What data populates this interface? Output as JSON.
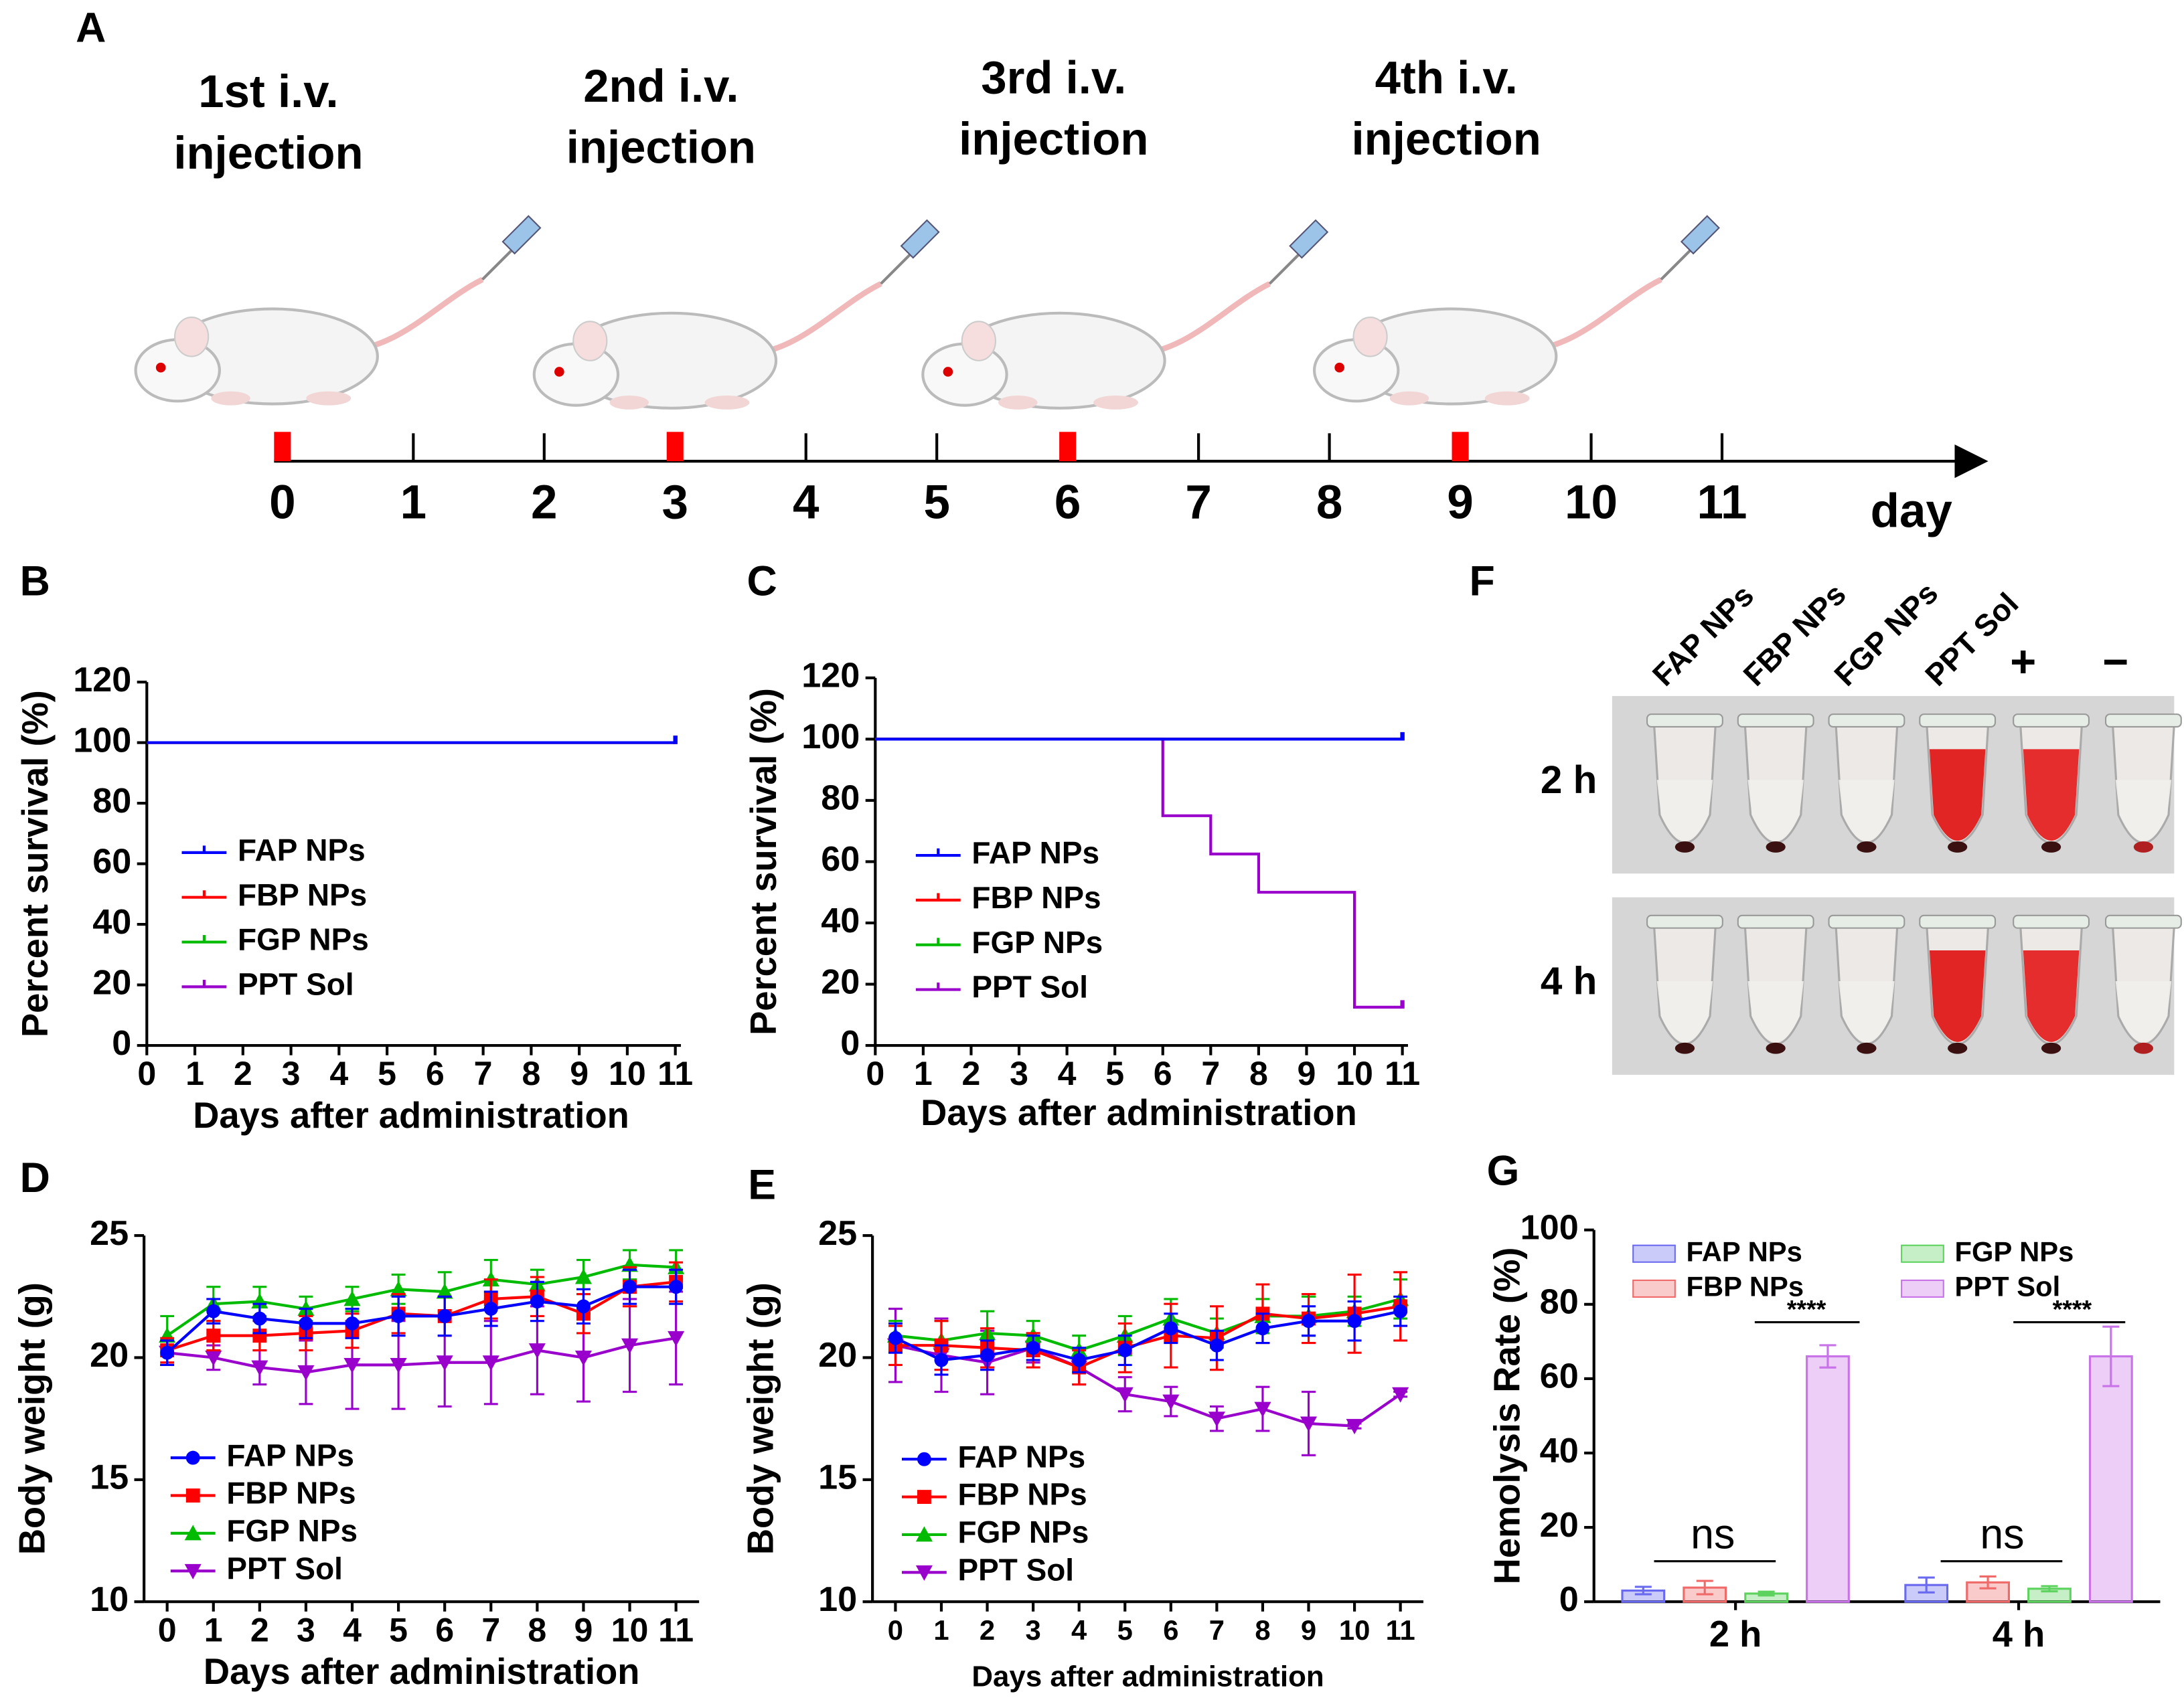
{
  "timeline": {
    "panel": "A",
    "injections": [
      [
        "1st i.v.",
        "injection"
      ],
      [
        "2nd i.v.",
        "injection"
      ],
      [
        "3rd i.v.",
        "injection"
      ],
      [
        "4th i.v.",
        "injection"
      ]
    ],
    "injection_days": [
      0,
      3,
      6,
      9
    ],
    "days": [
      0,
      1,
      2,
      3,
      4,
      5,
      6,
      7,
      8,
      9,
      10,
      11
    ],
    "unit": "day",
    "marker_color": "#ff0000"
  },
  "photo": {
    "panel": "F",
    "columns": [
      "FAP NPs",
      "FBP NPs",
      "FGP NPs",
      "PPT Sol",
      "+",
      "−"
    ],
    "rows": [
      "2 h",
      "4 h"
    ]
  },
  "chart_data": [
    {
      "panel": "B",
      "type": "step",
      "xlabel": "Days after administration",
      "ylabel": "Percent survival (%)",
      "x": [
        0,
        1,
        2,
        3,
        4,
        5,
        6,
        7,
        8,
        9,
        10,
        11
      ],
      "xlim": [
        0,
        11
      ],
      "xticks": [
        0,
        1,
        2,
        3,
        4,
        5,
        6,
        7,
        8,
        9,
        10,
        11
      ],
      "ylim": [
        0,
        120
      ],
      "yticks": [
        0,
        20,
        40,
        60,
        80,
        100,
        120
      ],
      "legend": "center left",
      "series": [
        {
          "name": "FAP NPs",
          "color": "#0000ff",
          "values": [
            100,
            100,
            100,
            100,
            100,
            100,
            100,
            100,
            100,
            100,
            100,
            100
          ]
        },
        {
          "name": "FBP NPs",
          "color": "#ff0000",
          "values": [
            100,
            100,
            100,
            100,
            100,
            100,
            100,
            100,
            100,
            100,
            100,
            100
          ]
        },
        {
          "name": "FGP NPs",
          "color": "#00bb00",
          "values": [
            100,
            100,
            100,
            100,
            100,
            100,
            100,
            100,
            100,
            100,
            100,
            100
          ]
        },
        {
          "name": "PPT Sol",
          "color": "#9900cc",
          "values": [
            100,
            100,
            100,
            100,
            100,
            100,
            100,
            100,
            100,
            100,
            100,
            100
          ]
        }
      ]
    },
    {
      "panel": "C",
      "type": "step",
      "xlabel": "Days after administration",
      "ylabel": "Percent survival (%)",
      "x": [
        0,
        1,
        2,
        3,
        4,
        5,
        6,
        7,
        8,
        9,
        10,
        11
      ],
      "xlim": [
        0,
        11
      ],
      "xticks": [
        0,
        1,
        2,
        3,
        4,
        5,
        6,
        7,
        8,
        9,
        10,
        11
      ],
      "ylim": [
        0,
        120
      ],
      "yticks": [
        0,
        20,
        40,
        60,
        80,
        100,
        120
      ],
      "legend": "center left",
      "series": [
        {
          "name": "FAP NPs",
          "color": "#0000ff",
          "values": [
            100,
            100,
            100,
            100,
            100,
            100,
            100,
            100,
            100,
            100,
            100,
            100
          ]
        },
        {
          "name": "FBP NPs",
          "color": "#ff0000",
          "values": [
            100,
            100,
            100,
            100,
            100,
            100,
            100,
            100,
            100,
            100,
            100,
            100
          ]
        },
        {
          "name": "FGP NPs",
          "color": "#00bb00",
          "values": [
            100,
            100,
            100,
            100,
            100,
            100,
            100,
            100,
            100,
            100,
            100,
            100
          ]
        },
        {
          "name": "PPT Sol",
          "color": "#9900cc",
          "values": [
            100,
            100,
            100,
            100,
            100,
            100,
            75,
            62.5,
            50,
            50,
            12.5,
            12.5
          ]
        }
      ]
    },
    {
      "panel": "D",
      "type": "line",
      "xlabel": "Days after administration",
      "ylabel": "Body weight (g)",
      "x": [
        0,
        1,
        2,
        3,
        4,
        5,
        6,
        7,
        8,
        9,
        10,
        11
      ],
      "xlim": [
        -0.5,
        11.5
      ],
      "xticks": [
        0,
        1,
        2,
        3,
        4,
        5,
        6,
        7,
        8,
        9,
        10,
        11
      ],
      "ylim": [
        10,
        25
      ],
      "yticks": [
        10,
        15,
        20,
        25
      ],
      "legend": "lower left",
      "series": [
        {
          "name": "FAP NPs",
          "color": "#0000ff",
          "marker": "circle",
          "values": [
            20.2,
            21.9,
            21.6,
            21.4,
            21.4,
            21.7,
            21.7,
            22.0,
            22.3,
            22.1,
            22.9,
            22.9
          ],
          "errors": [
            0.5,
            0.5,
            0.6,
            0.6,
            0.6,
            0.8,
            0.8,
            0.7,
            0.8,
            0.7,
            0.7,
            0.7
          ]
        },
        {
          "name": "FBP NPs",
          "color": "#ff0000",
          "marker": "square",
          "values": [
            20.3,
            20.9,
            20.9,
            21.0,
            21.1,
            21.8,
            21.7,
            22.4,
            22.5,
            21.8,
            22.9,
            23.1
          ],
          "errors": [
            0.5,
            0.6,
            0.6,
            0.7,
            0.7,
            0.8,
            0.8,
            0.8,
            0.8,
            0.8,
            0.8,
            0.8
          ]
        },
        {
          "name": "FGP NPs",
          "color": "#00bb00",
          "marker": "triangle",
          "values": [
            20.9,
            22.2,
            22.3,
            22.0,
            22.4,
            22.8,
            22.7,
            23.2,
            23.0,
            23.3,
            23.8,
            23.7
          ],
          "errors": [
            0.8,
            0.7,
            0.6,
            0.5,
            0.5,
            0.6,
            0.8,
            0.8,
            0.6,
            0.7,
            0.6,
            0.7
          ]
        },
        {
          "name": "PPT Sol",
          "color": "#9900cc",
          "marker": "triangle-down",
          "values": [
            20.2,
            20.0,
            19.6,
            19.4,
            19.7,
            19.7,
            19.8,
            19.8,
            20.3,
            20.0,
            20.5,
            20.8
          ],
          "errors": [
            0.5,
            0.5,
            0.7,
            1.3,
            1.8,
            1.8,
            1.8,
            1.7,
            1.8,
            1.8,
            1.9,
            1.9
          ]
        }
      ]
    },
    {
      "panel": "E",
      "type": "line",
      "xlabel": "Days after administration",
      "ylabel": "Body weight (g)",
      "x": [
        0,
        1,
        2,
        3,
        4,
        5,
        6,
        7,
        8,
        9,
        10,
        11
      ],
      "xlim": [
        -0.5,
        11.5
      ],
      "xticks": [
        0,
        1,
        2,
        3,
        4,
        5,
        6,
        7,
        8,
        9,
        10,
        11
      ],
      "ylim": [
        10,
        25
      ],
      "yticks": [
        10,
        15,
        20,
        25
      ],
      "legend": "lower left",
      "series": [
        {
          "name": "FAP NPs",
          "color": "#0000ff",
          "marker": "circle",
          "values": [
            20.8,
            19.9,
            20.1,
            20.4,
            19.9,
            20.3,
            21.2,
            20.5,
            21.2,
            21.5,
            21.5,
            21.9
          ],
          "errors": [
            0.6,
            0.6,
            0.6,
            0.5,
            0.5,
            0.6,
            0.6,
            0.6,
            0.6,
            0.6,
            0.8,
            0.6
          ]
        },
        {
          "name": "FBP NPs",
          "color": "#ff0000",
          "marker": "square",
          "values": [
            20.5,
            20.5,
            20.4,
            20.3,
            19.6,
            20.4,
            20.9,
            20.8,
            21.8,
            21.6,
            21.8,
            22.1
          ],
          "errors": [
            0.8,
            1.0,
            0.8,
            0.7,
            0.7,
            1.0,
            1.3,
            1.3,
            1.2,
            1.0,
            1.6,
            1.4
          ]
        },
        {
          "name": "FGP NPs",
          "color": "#00bb00",
          "marker": "triangle",
          "values": [
            20.9,
            20.7,
            21.0,
            20.9,
            20.3,
            20.9,
            21.6,
            21.0,
            21.7,
            21.7,
            21.9,
            22.4
          ],
          "errors": [
            0.6,
            0.8,
            0.9,
            0.6,
            0.6,
            0.8,
            0.8,
            0.6,
            0.7,
            0.8,
            0.6,
            0.8
          ]
        },
        {
          "name": "PPT Sol",
          "color": "#9900cc",
          "marker": "triangle-down",
          "values": [
            20.5,
            20.1,
            19.8,
            20.4,
            19.6,
            18.5,
            18.2,
            17.5,
            17.9,
            17.3,
            17.2,
            18.5
          ],
          "errors": [
            1.5,
            1.5,
            1.3,
            0.6,
            0.7,
            0.7,
            0.6,
            0.5,
            0.9,
            1.3,
            0.1,
            0.1
          ]
        }
      ]
    },
    {
      "panel": "G",
      "type": "bar",
      "ylabel": "Hemolysis Rate  (%)",
      "categories": [
        "2 h",
        "4 h"
      ],
      "ylim": [
        0,
        100
      ],
      "yticks": [
        0,
        20,
        40,
        60,
        80,
        100
      ],
      "legend": "upper center",
      "annotations": [
        "ns",
        "****",
        "ns",
        "****"
      ],
      "series": [
        {
          "name": "FAP NPs",
          "color": "#6a6af0",
          "values": [
            3,
            4.5
          ],
          "errors": [
            1,
            2
          ]
        },
        {
          "name": "FBP NPs",
          "color": "#f06a6a",
          "values": [
            3.8,
            5.2
          ],
          "errors": [
            1.8,
            1.6
          ]
        },
        {
          "name": "FGP NPs",
          "color": "#5ed25e",
          "values": [
            2.2,
            3.5
          ],
          "errors": [
            0.5,
            0.7
          ]
        },
        {
          "name": "PPT Sol",
          "color": "#c873e8",
          "values": [
            66,
            66
          ],
          "errors": [
            3,
            8
          ]
        }
      ]
    }
  ]
}
